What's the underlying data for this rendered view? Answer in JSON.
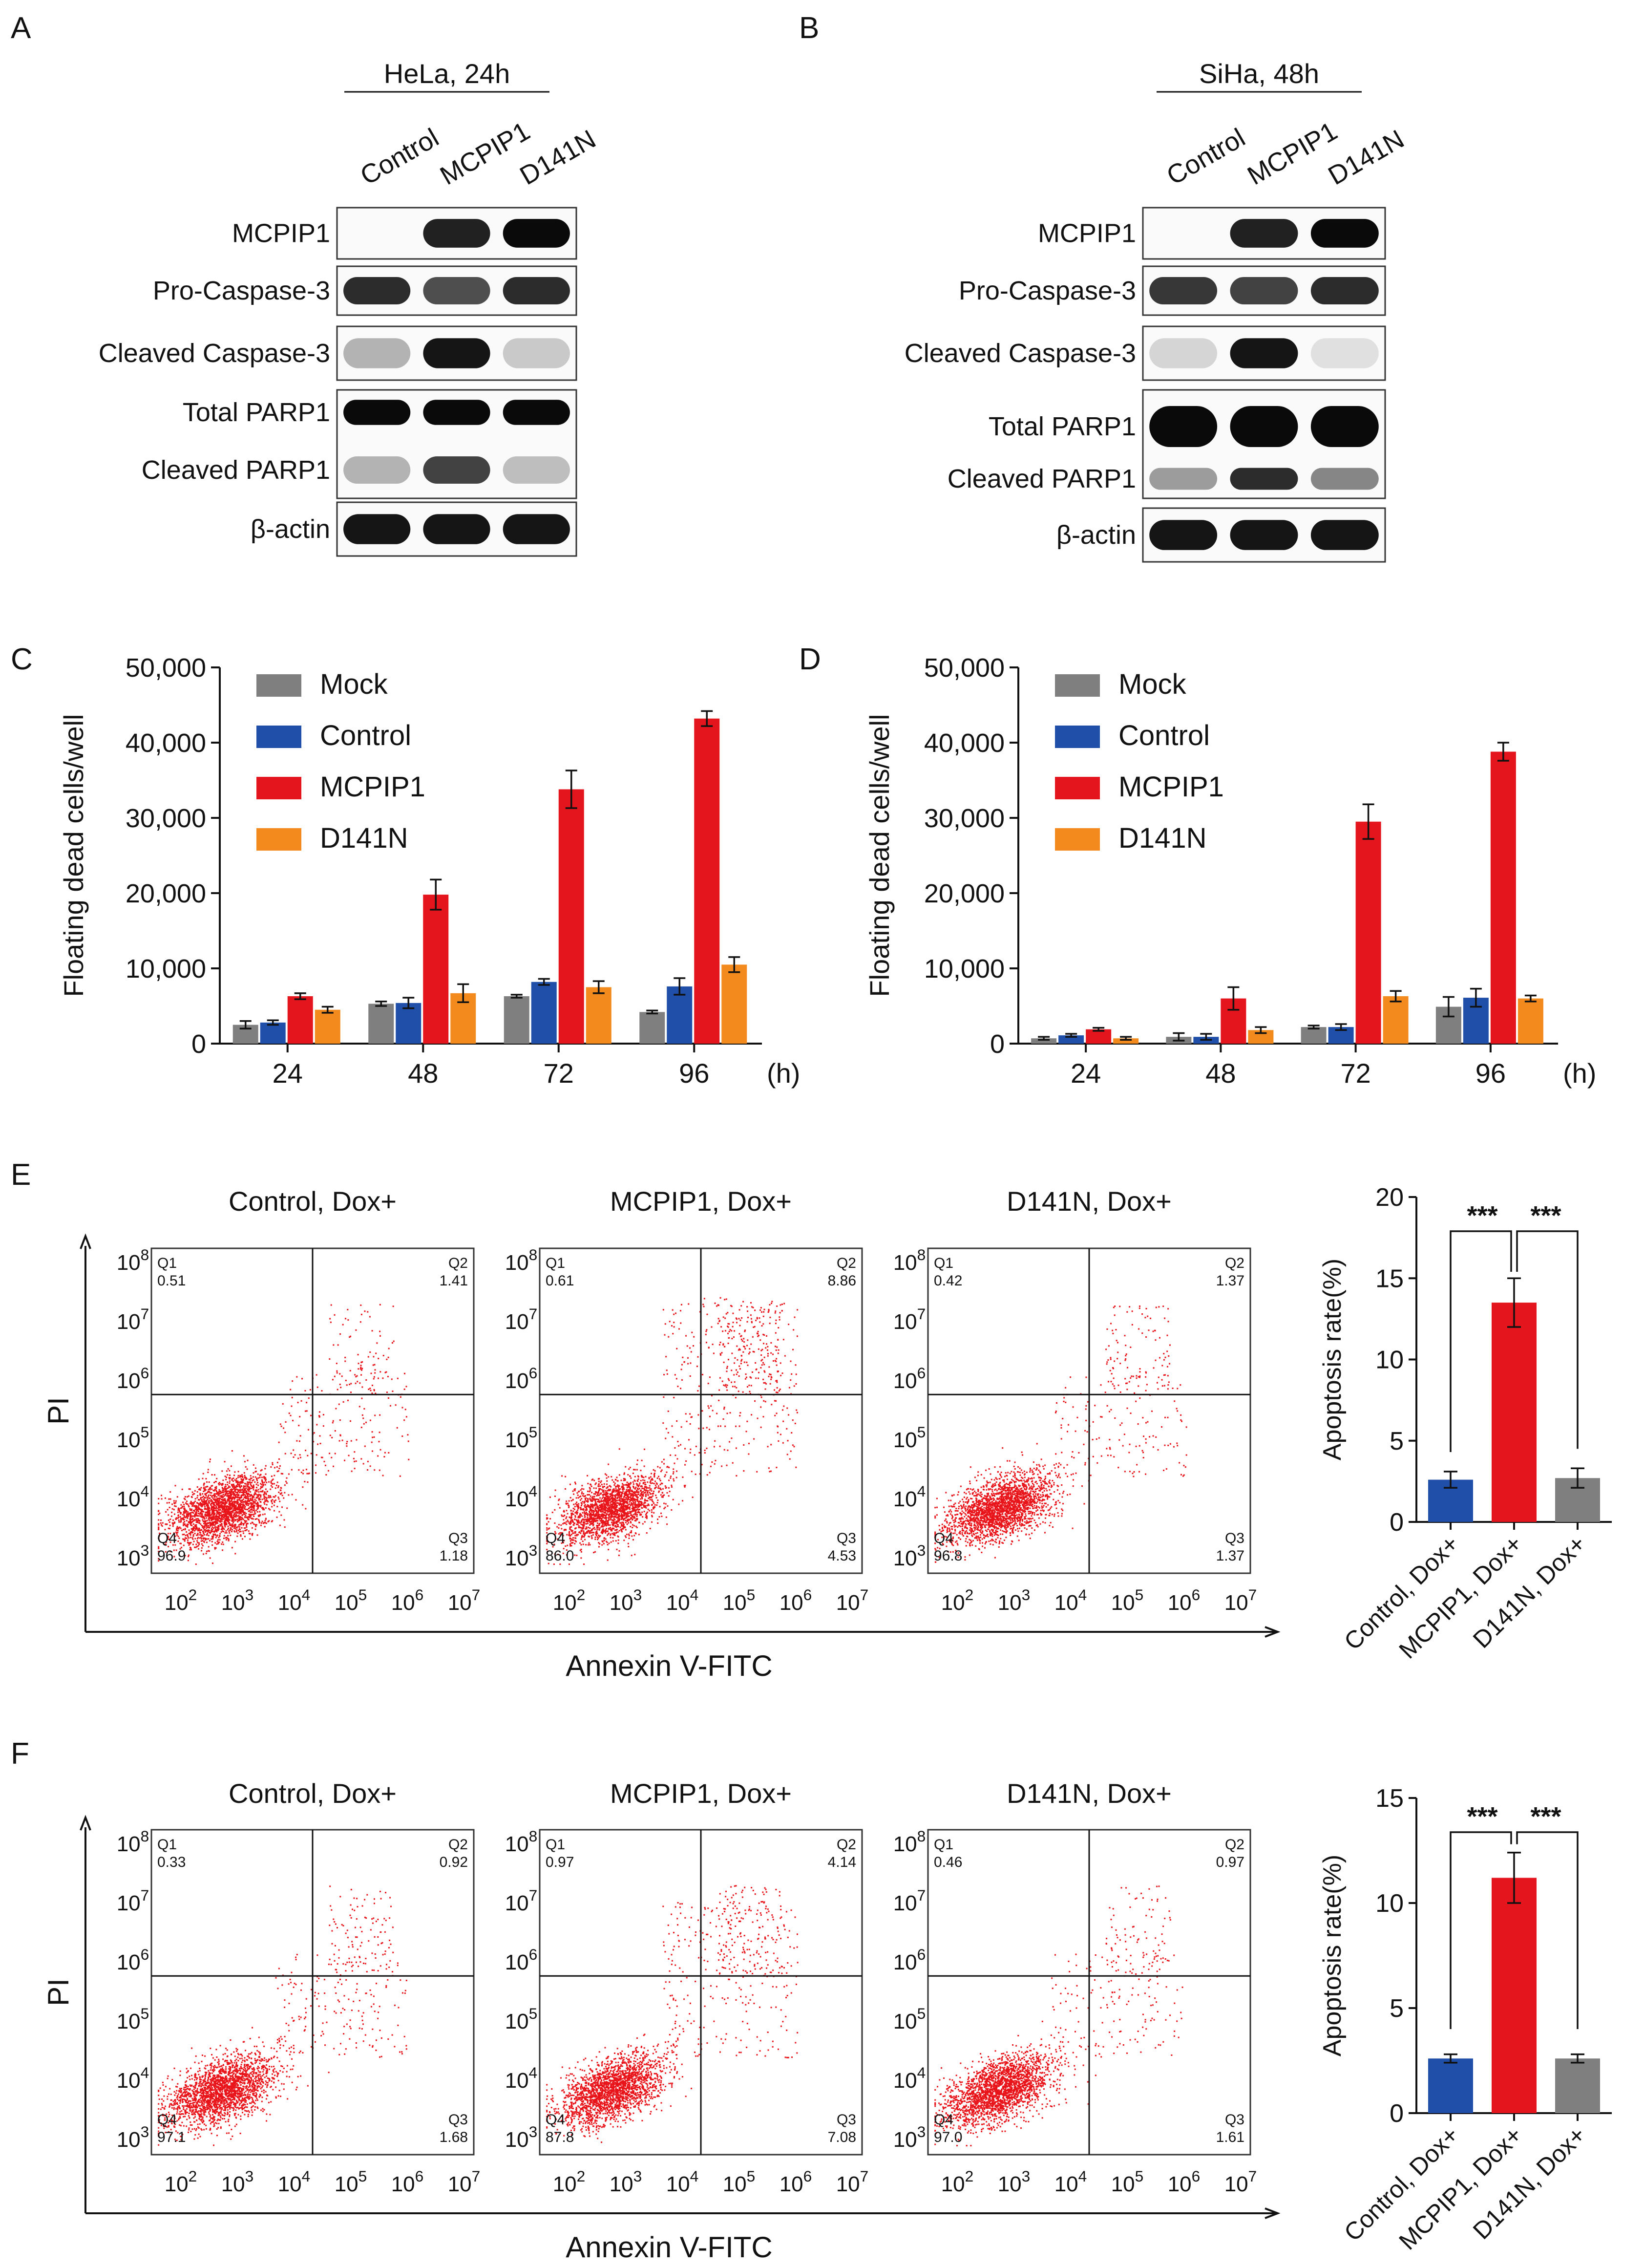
{
  "panels": {
    "A": {
      "letter": "A",
      "header": "HeLa, 24h",
      "lanes": [
        "Control",
        "MCPIP1",
        "D141N"
      ],
      "blots": [
        {
          "label": "MCPIP1",
          "bands": [
            0.0,
            0.9,
            1.0
          ]
        },
        {
          "label": "Pro-Caspase-3",
          "bands": [
            0.85,
            0.7,
            0.85
          ]
        },
        {
          "label": "Cleaved Caspase-3",
          "bands": [
            0.25,
            0.95,
            0.15
          ]
        },
        {
          "label": "Total PARP1",
          "bands": [
            1.0,
            1.0,
            1.0
          ]
        },
        {
          "label": "Cleaved PARP1",
          "bands": [
            0.25,
            0.75,
            0.2
          ]
        },
        {
          "label": "β-actin",
          "bands": [
            0.95,
            0.95,
            0.95
          ]
        }
      ]
    },
    "B": {
      "letter": "B",
      "header": "SiHa, 48h",
      "lanes": [
        "Control",
        "MCPIP1",
        "D141N"
      ],
      "blots": [
        {
          "label": "MCPIP1",
          "bands": [
            0.0,
            0.9,
            1.0
          ]
        },
        {
          "label": "Pro-Caspase-3",
          "bands": [
            0.8,
            0.75,
            0.85
          ]
        },
        {
          "label": "Cleaved Caspase-3",
          "bands": [
            0.1,
            0.95,
            0.05
          ]
        },
        {
          "label": "Total PARP1",
          "bands": [
            1.0,
            1.0,
            1.0
          ]
        },
        {
          "label": "Cleaved PARP1",
          "bands": [
            0.35,
            0.85,
            0.45
          ]
        },
        {
          "label": "β-actin",
          "bands": [
            0.95,
            0.95,
            0.95
          ]
        }
      ]
    },
    "E": {
      "letter": "E"
    },
    "F": {
      "letter": "F"
    },
    "C": {
      "letter": "C"
    },
    "D": {
      "letter": "D"
    }
  },
  "colors": {
    "mock": "#7f7f7f",
    "control": "#1f4fa8",
    "mcpip1": "#e4151c",
    "d141n": "#f28a1e",
    "dot": "#e8141a"
  },
  "chart_data": [
    {
      "id": "C",
      "type": "bar",
      "ylabel": "Floating dead cells/well",
      "xunit": "(h)",
      "categories": [
        "24",
        "48",
        "72",
        "96"
      ],
      "ylim": [
        0,
        50000
      ],
      "yticks": [
        "0",
        "10,000",
        "20,000",
        "30,000",
        "40,000",
        "50,000"
      ],
      "legend": "top-left",
      "series": [
        {
          "name": "Mock",
          "values": [
            2500,
            5300,
            6300,
            4200
          ],
          "errors": [
            500,
            300,
            200,
            200
          ]
        },
        {
          "name": "Control",
          "values": [
            2800,
            5400,
            8200,
            7600
          ],
          "errors": [
            300,
            700,
            400,
            1100
          ]
        },
        {
          "name": "MCPIP1",
          "values": [
            6300,
            19800,
            33800,
            43200
          ],
          "errors": [
            400,
            2000,
            2500,
            1000
          ]
        },
        {
          "name": "D141N",
          "values": [
            4500,
            6700,
            7500,
            10500
          ],
          "errors": [
            400,
            1200,
            800,
            1000
          ]
        }
      ]
    },
    {
      "id": "D",
      "type": "bar",
      "ylabel": "Floating dead cells/well",
      "xunit": "(h)",
      "categories": [
        "24",
        "48",
        "72",
        "96"
      ],
      "ylim": [
        0,
        50000
      ],
      "yticks": [
        "0",
        "10,000",
        "20,000",
        "30,000",
        "40,000",
        "50,000"
      ],
      "legend": "top-left",
      "series": [
        {
          "name": "Mock",
          "values": [
            700,
            900,
            2200,
            4900
          ],
          "errors": [
            200,
            500,
            200,
            1300
          ]
        },
        {
          "name": "Control",
          "values": [
            1100,
            900,
            2200,
            6100
          ],
          "errors": [
            200,
            400,
            400,
            1200
          ]
        },
        {
          "name": "MCPIP1",
          "values": [
            1900,
            6000,
            29500,
            38800
          ],
          "errors": [
            200,
            1500,
            2300,
            1200
          ]
        },
        {
          "name": "D141N",
          "values": [
            700,
            1800,
            6300,
            6000
          ],
          "errors": [
            200,
            400,
            700,
            400
          ]
        }
      ]
    },
    {
      "id": "E-flow",
      "type": "scatter",
      "xlabel": "Annexin V-FITC",
      "ylabel": "PI",
      "log_ticks_x": [
        "10^2",
        "10^3",
        "10^4",
        "10^5",
        "10^6",
        "10^7"
      ],
      "log_ticks_y": [
        "10^3",
        "10^4",
        "10^5",
        "10^6",
        "10^7",
        "10^8"
      ],
      "plots": [
        {
          "title": "Control, Dox+",
          "quadrants": {
            "Q1": "0.51",
            "Q2": "1.41",
            "Q3": "1.18",
            "Q4": "96.9"
          },
          "spread": 0.3
        },
        {
          "title": "MCPIP1, Dox+",
          "quadrants": {
            "Q1": "0.61",
            "Q2": "8.86",
            "Q3": "4.53",
            "Q4": "86.0"
          },
          "spread": 1.0
        },
        {
          "title": "D141N, Dox+",
          "quadrants": {
            "Q1": "0.42",
            "Q2": "1.37",
            "Q3": "1.37",
            "Q4": "96.8"
          },
          "spread": 0.3
        }
      ]
    },
    {
      "id": "E-bar",
      "type": "bar",
      "ylabel": "Apoptosis rate(%)",
      "categories": [
        "Control, Dox+",
        "MCPIP1, Dox+",
        "D141N, Dox+"
      ],
      "values": [
        2.6,
        13.5,
        2.7
      ],
      "errors": [
        0.5,
        1.5,
        0.6
      ],
      "ylim": [
        0,
        20
      ],
      "yticks": [
        "0",
        "5",
        "10",
        "15",
        "20"
      ],
      "significance": [
        "***",
        "***"
      ]
    },
    {
      "id": "F-flow",
      "type": "scatter",
      "xlabel": "Annexin V-FITC",
      "ylabel": "PI",
      "log_ticks_x": [
        "10^2",
        "10^3",
        "10^4",
        "10^5",
        "10^6",
        "10^7"
      ],
      "log_ticks_y": [
        "10^3",
        "10^4",
        "10^5",
        "10^6",
        "10^7",
        "10^8"
      ],
      "plots": [
        {
          "title": "Control, Dox+",
          "quadrants": {
            "Q1": "0.33",
            "Q2": "0.92",
            "Q3": "1.68",
            "Q4": "97.1"
          },
          "spread": 0.3
        },
        {
          "title": "MCPIP1, Dox+",
          "quadrants": {
            "Q1": "0.97",
            "Q2": "4.14",
            "Q3": "7.08",
            "Q4": "87.8"
          },
          "spread": 0.8
        },
        {
          "title": "D141N, Dox+",
          "quadrants": {
            "Q1": "0.46",
            "Q2": "0.97",
            "Q3": "1.61",
            "Q4": "97.0"
          },
          "spread": 0.3
        }
      ]
    },
    {
      "id": "F-bar",
      "type": "bar",
      "ylabel": "Apoptosis rate(%)",
      "categories": [
        "Control, Dox+",
        "MCPIP1, Dox+",
        "D141N, Dox+"
      ],
      "values": [
        2.6,
        11.2,
        2.6
      ],
      "errors": [
        0.2,
        1.2,
        0.2
      ],
      "ylim": [
        0,
        15
      ],
      "yticks": [
        "0",
        "5",
        "10",
        "15"
      ],
      "significance": [
        "***",
        "***"
      ]
    }
  ]
}
